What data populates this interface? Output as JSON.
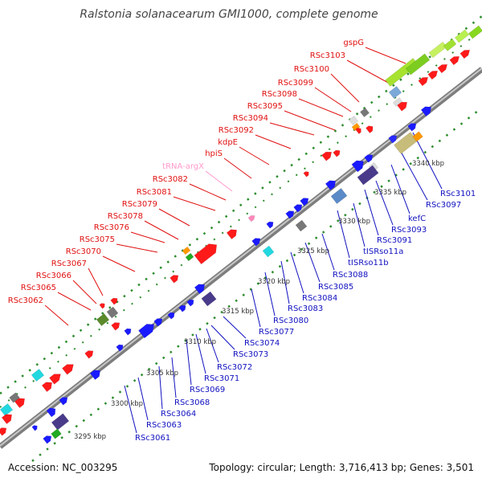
{
  "title": "Ralstonia solanacearum GMI1000, complete genome",
  "accession": "Accession: NC_003295",
  "topology": "Topology: circular; Length: 3,716,413 bp; Genes: 3,501",
  "colors": {
    "top_label": "#e01010",
    "bottom_label": "#1010c0",
    "trna_label": "#ff99cc",
    "backbone": "#9a9a9a",
    "dots": "#2c8c2c"
  },
  "top_labels": [
    {
      "text": "gspG",
      "color": "red"
    },
    {
      "text": "RSc3103",
      "color": "red"
    },
    {
      "text": "RSc3100",
      "color": "red"
    },
    {
      "text": "RSc3099",
      "color": "red"
    },
    {
      "text": "RSc3098",
      "color": "red"
    },
    {
      "text": "RSc3095",
      "color": "red"
    },
    {
      "text": "RSc3094",
      "color": "red"
    },
    {
      "text": "RSc3092",
      "color": "red"
    },
    {
      "text": "kdpE",
      "color": "red"
    },
    {
      "text": "hpiS",
      "color": "red"
    },
    {
      "text": "tRNA-argX",
      "color": "pink"
    },
    {
      "text": "RSc3082",
      "color": "red"
    },
    {
      "text": "RSc3081",
      "color": "red"
    },
    {
      "text": "RSc3079",
      "color": "red"
    },
    {
      "text": "RSc3078",
      "color": "red"
    },
    {
      "text": "RSc3076",
      "color": "red"
    },
    {
      "text": "RSc3075",
      "color": "red"
    },
    {
      "text": "RSc3070",
      "color": "red"
    },
    {
      "text": "RSc3067",
      "color": "red"
    },
    {
      "text": "RSc3066",
      "color": "red"
    },
    {
      "text": "RSc3065",
      "color": "red"
    },
    {
      "text": "RSc3062",
      "color": "red"
    }
  ],
  "bottom_labels": [
    {
      "text": "RSc3101"
    },
    {
      "text": "RSc3097"
    },
    {
      "text": "kefC"
    },
    {
      "text": "RSc3093"
    },
    {
      "text": "RSc3091"
    },
    {
      "text": "tISRso11a"
    },
    {
      "text": "tISRso11b"
    },
    {
      "text": "RSc3088"
    },
    {
      "text": "RSc3085"
    },
    {
      "text": "RSc3084"
    },
    {
      "text": "RSc3083"
    },
    {
      "text": "RSc3080"
    },
    {
      "text": "RSc3077"
    },
    {
      "text": "RSc3074"
    },
    {
      "text": "RSc3073"
    },
    {
      "text": "RSc3072"
    },
    {
      "text": "RSc3071"
    },
    {
      "text": "RSc3069"
    },
    {
      "text": "RSc3068"
    },
    {
      "text": "RSc3064"
    },
    {
      "text": "RSc3063"
    },
    {
      "text": "RSc3061"
    }
  ],
  "kbp_ticks": [
    "3340 kbp",
    "3335 kbp",
    "3330 kbp",
    "3325 kbp",
    "3320 kbp",
    "3315 kbp",
    "3310 kbp",
    "3305 kbp",
    "3300 kbp",
    "3295 kbp"
  ]
}
